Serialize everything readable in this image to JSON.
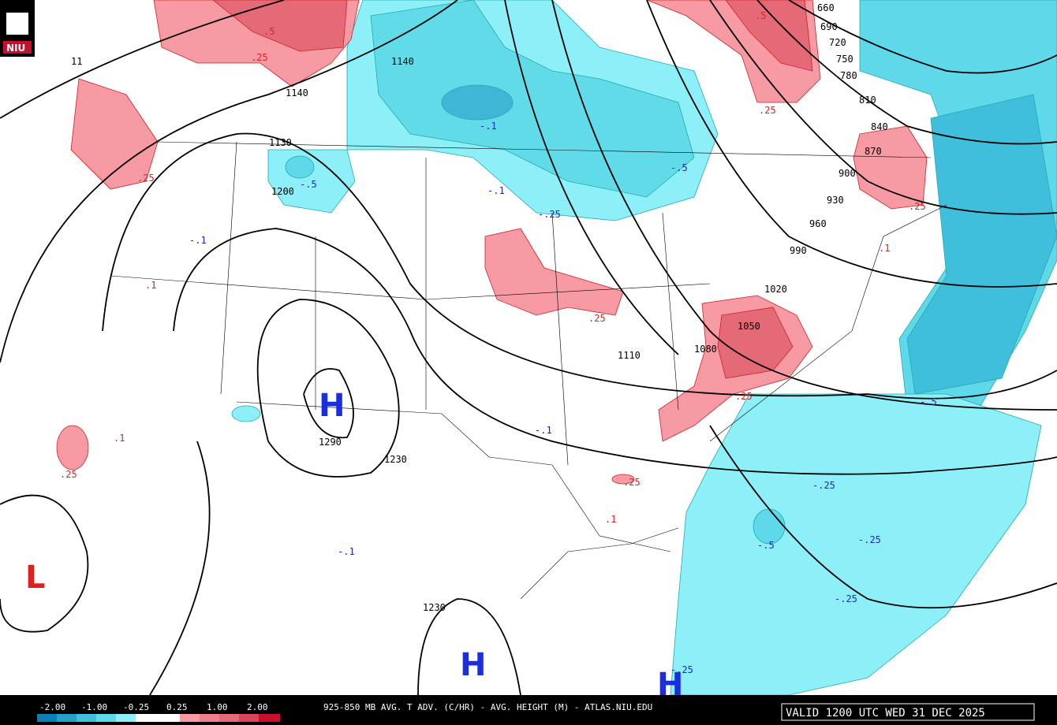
{
  "logo": "NIU",
  "height_labels": [
    "1140",
    "1140",
    "1130",
    "1200",
    "1290",
    "1230",
    "1230",
    "1110",
    "1080",
    "1050",
    "1020",
    "990",
    "960",
    "930",
    "900",
    "870",
    "840",
    "810",
    "780",
    "750",
    "720",
    "690",
    "660",
    "11"
  ],
  "warm_labels": [
    ".5",
    ".25",
    ".25",
    ".1",
    ".1",
    ".25",
    ".5",
    ".25",
    ".25",
    ".25",
    ".1",
    ".25",
    ".25",
    ".1"
  ],
  "cold_labels": [
    "-.1",
    "-.5",
    "-.1",
    "-.1",
    "-.25",
    "-.5",
    "-.1",
    "-.1",
    "-.5",
    "-.25",
    "-.25",
    "-.25",
    "-.5",
    "-.25"
  ],
  "centers": [
    "H",
    "H",
    "H",
    "L"
  ],
  "legend": [
    "-2.00",
    "-1.00",
    "-0.25",
    "0.25",
    "1.00",
    "2.00"
  ],
  "footer": {
    "title": "925-850 MB AVG. T ADV. (C/HR) - AVG. HEIGHT (M) - ATLAS.NIU.EDU",
    "valid": "VALID 1200 UTC WED 31 DEC 2025"
  }
}
